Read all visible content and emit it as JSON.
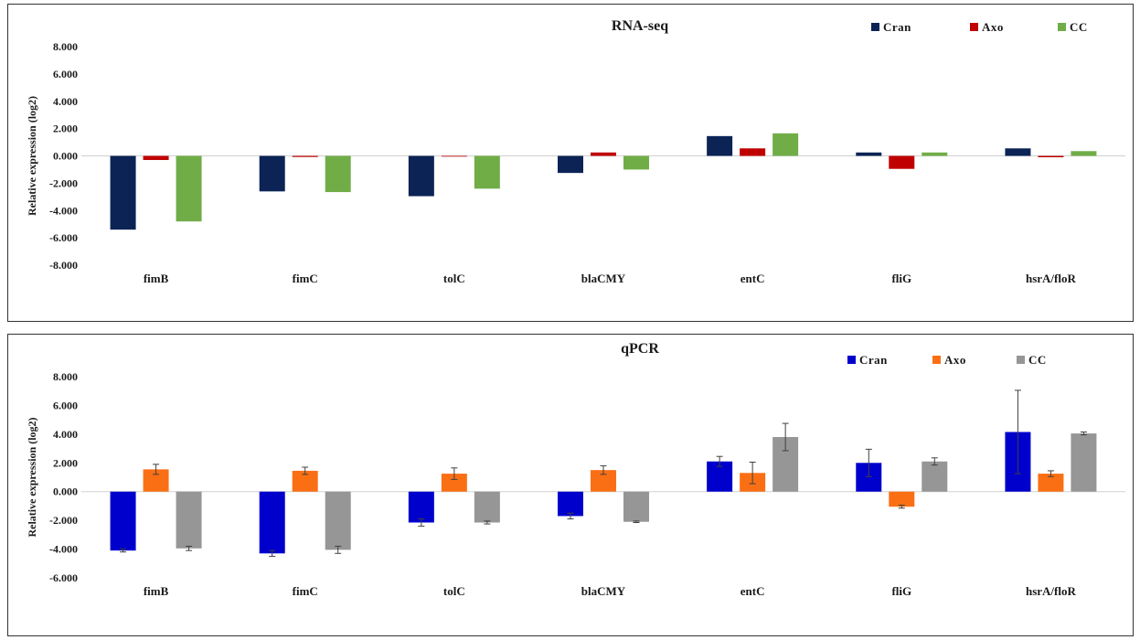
{
  "chart_data": [
    {
      "type": "bar",
      "title": "RNA-seq",
      "xlabel": "",
      "ylabel": "Relative expression (log2)",
      "ylim": [
        -8,
        8
      ],
      "ytick_step": 2,
      "ytick_labels": [
        "8.000",
        "6.000",
        "4.000",
        "2.000",
        "0.000",
        "-2.000",
        "-4.000",
        "-6.000",
        "-8.000"
      ],
      "legend_position": "top-right",
      "grid": false,
      "categories": [
        "fimB",
        "fimC",
        "tolC",
        "blaCMY",
        "entC",
        "fliG",
        "hsrA/floR"
      ],
      "series": [
        {
          "name": "Cran",
          "color": "#0b2355",
          "values": [
            -5.4,
            -2.6,
            -2.95,
            -1.25,
            1.45,
            0.25,
            0.55
          ]
        },
        {
          "name": "Axo",
          "color": "#c00000",
          "values": [
            -0.3,
            -0.08,
            0.0,
            0.25,
            0.55,
            -0.95,
            -0.1
          ]
        },
        {
          "name": "CC",
          "color": "#70ad47",
          "values": [
            -4.8,
            -2.65,
            -2.4,
            -1.0,
            1.65,
            0.25,
            0.35
          ]
        }
      ]
    },
    {
      "type": "bar",
      "title": "qPCR",
      "xlabel": "",
      "ylabel": "Relative expression (log2)",
      "ylim": [
        -6,
        8
      ],
      "ytick_step": 2,
      "ytick_labels": [
        "8.000",
        "6.000",
        "4.000",
        "2.000",
        "0.000",
        "-2.000",
        "-4.000",
        "-6.000"
      ],
      "legend_position": "top-right",
      "grid": false,
      "categories": [
        "fimB",
        "fimC",
        "tolC",
        "blaCMY",
        "entC",
        "fliG",
        "hsrA/floR"
      ],
      "series": [
        {
          "name": "Cran",
          "color": "#0000cc",
          "values": [
            -4.1,
            -4.3,
            -2.15,
            -1.7,
            2.1,
            2.0,
            4.15
          ],
          "errors": [
            0.1,
            0.2,
            0.25,
            0.2,
            0.35,
            0.95,
            2.9
          ]
        },
        {
          "name": "Axo",
          "color": "#fb6f14",
          "values": [
            1.55,
            1.45,
            1.25,
            1.5,
            1.3,
            -1.05,
            1.25
          ],
          "errors": [
            0.35,
            0.25,
            0.4,
            0.3,
            0.75,
            0.1,
            0.2
          ]
        },
        {
          "name": "CC",
          "color": "#969696",
          "values": [
            -3.95,
            -4.05,
            -2.15,
            -2.1,
            3.8,
            2.1,
            4.05
          ],
          "errors": [
            0.15,
            0.25,
            0.1,
            0.05,
            0.95,
            0.25,
            0.1
          ]
        }
      ]
    }
  ]
}
